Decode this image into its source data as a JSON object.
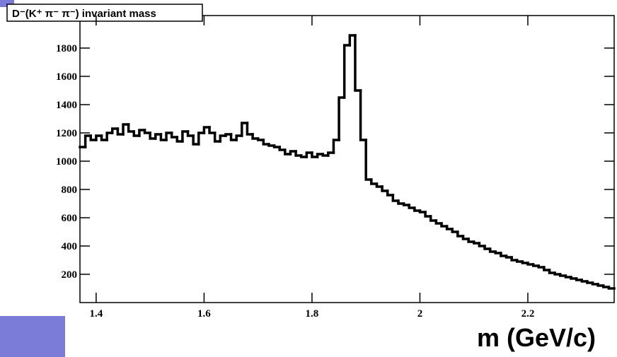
{
  "chart_data": {
    "type": "histogram",
    "title": "D⁻(K⁺ π⁻ π⁻) invariant mass",
    "x_label": "m (GeV/c)",
    "color": "#000000",
    "bins": [
      1.37,
      1.38,
      1.39,
      1.4,
      1.41,
      1.42,
      1.43,
      1.44,
      1.45,
      1.46,
      1.47,
      1.48,
      1.49,
      1.5,
      1.51,
      1.52,
      1.53,
      1.54,
      1.55,
      1.56,
      1.57,
      1.58,
      1.59,
      1.6,
      1.61,
      1.62,
      1.63,
      1.64,
      1.65,
      1.66,
      1.67,
      1.68,
      1.69,
      1.7,
      1.71,
      1.72,
      1.73,
      1.74,
      1.75,
      1.76,
      1.77,
      1.78,
      1.79,
      1.8,
      1.81,
      1.82,
      1.83,
      1.84,
      1.85,
      1.86,
      1.87,
      1.88,
      1.89,
      1.9,
      1.91,
      1.92,
      1.93,
      1.94,
      1.95,
      1.96,
      1.97,
      1.98,
      1.99,
      2.0,
      2.01,
      2.02,
      2.03,
      2.04,
      2.05,
      2.06,
      2.07,
      2.08,
      2.09,
      2.1,
      2.11,
      2.12,
      2.13,
      2.14,
      2.15,
      2.16,
      2.17,
      2.18,
      2.19,
      2.2,
      2.21,
      2.22,
      2.23,
      2.24,
      2.25,
      2.26,
      2.27,
      2.28,
      2.29,
      2.3,
      2.31,
      2.32,
      2.33,
      2.34,
      2.35,
      2.36
    ],
    "values": [
      1100,
      1180,
      1150,
      1180,
      1150,
      1200,
      1230,
      1190,
      1260,
      1210,
      1180,
      1220,
      1200,
      1160,
      1190,
      1150,
      1200,
      1170,
      1140,
      1210,
      1180,
      1120,
      1200,
      1240,
      1200,
      1140,
      1180,
      1190,
      1150,
      1180,
      1270,
      1190,
      1160,
      1150,
      1120,
      1110,
      1100,
      1080,
      1050,
      1070,
      1040,
      1030,
      1060,
      1030,
      1050,
      1040,
      1060,
      1150,
      1450,
      1820,
      1890,
      1500,
      1150,
      870,
      840,
      820,
      790,
      760,
      720,
      700,
      690,
      670,
      650,
      640,
      610,
      580,
      560,
      540,
      520,
      500,
      470,
      450,
      430,
      420,
      400,
      380,
      360,
      350,
      330,
      320,
      300,
      290,
      280,
      270,
      260,
      250,
      230,
      210,
      200,
      190,
      180,
      170,
      160,
      150,
      140,
      130,
      120,
      110,
      100
    ],
    "xlim": [
      1.37,
      2.36
    ],
    "ylim": [
      0,
      2030
    ],
    "xticks": [
      1.4,
      1.6,
      1.8,
      2,
      2.2
    ],
    "yticks": [
      200,
      400,
      600,
      800,
      1000,
      1200,
      1400,
      1600,
      1800
    ]
  }
}
